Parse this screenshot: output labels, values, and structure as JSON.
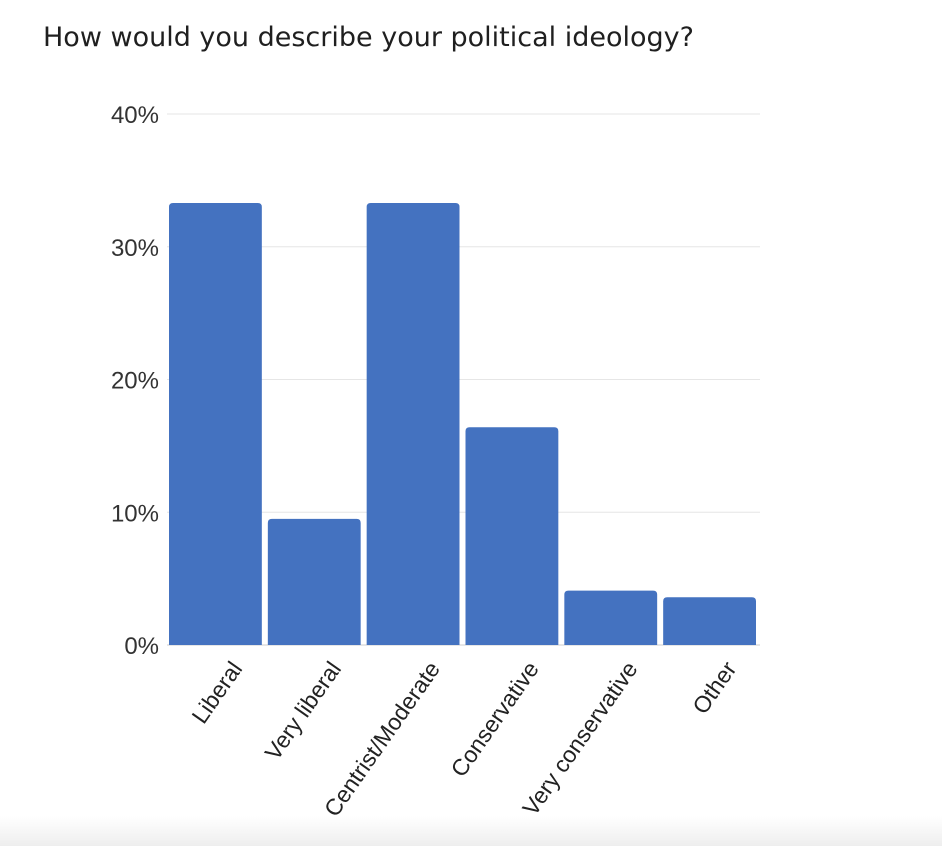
{
  "title": "How would you describe your political ideology?",
  "colors": {
    "bar": "#4472c0",
    "grid": "#e6e6e6",
    "axis": "#cccccc"
  },
  "chart_data": {
    "type": "bar",
    "title": "How would you describe your political ideology?",
    "xlabel": "",
    "ylabel": "",
    "categories": [
      "Liberal",
      "Very liberal",
      "Centrist/Moderate",
      "Conservative",
      "Very conservative",
      "Other"
    ],
    "values": [
      33.3,
      9.5,
      33.3,
      16.4,
      4.1,
      3.6
    ],
    "ylim": [
      0,
      40
    ],
    "yticks": [
      0,
      10,
      20,
      30,
      40
    ],
    "ytick_labels": [
      "0%",
      "10%",
      "20%",
      "30%",
      "40%"
    ],
    "grid": true,
    "legend": "none"
  }
}
